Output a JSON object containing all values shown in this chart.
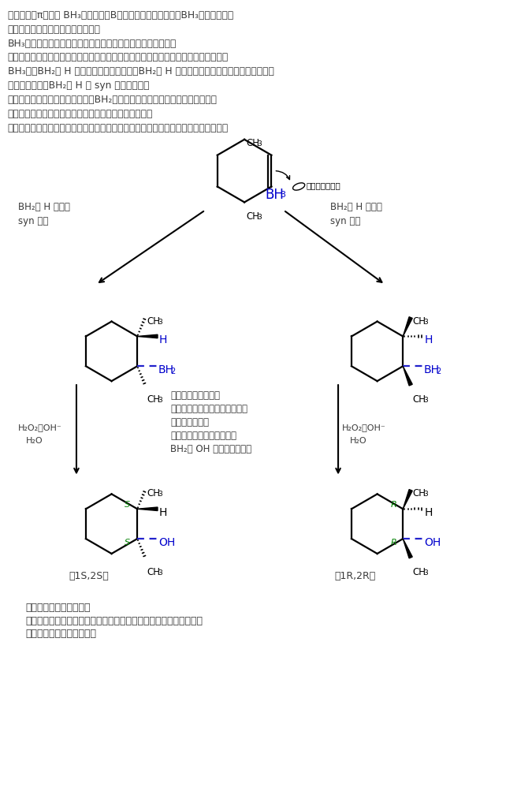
{
  "bg_color": "#ffffff",
  "text_color": "#3a3a3a",
  "blue_color": "#0000cc",
  "green_color": "#008000",
  "black_color": "#000000",
  "line1": "アルケンのπ電子が BH₃のホウ素（B）の空軌道に供与され、BH₃が付加する。",
  "line2": "この時、アルケンの平面に対して、",
  "line3": "BH₃が上に付加するのと下に付加するのは平等に起こり得る。",
  "line4": "このことから、アルケンの構造によっては、立体異性体が等量で生じることになる。",
  "line5": "BH₃は、BH₂と H に分かれて付加するが、BH₂と H がゆるくつながった状態で付加する。",
  "line6": "このことから、BH₂と H の syn 付加となる。",
  "line7": "この時、立体障害を避けるため、BH₂は置換基の少ない方の炭素に付加する。",
  "line8": "このことから、主生成物は逆マルコフニコフ型となる。",
  "line9": "（本問のアルケンは、２つの炭素で置換基の数は同じなので、考慮しなくてよい。）",
  "label_left1": "BH₂と H が上に",
  "label_left2": "syn 付加",
  "label_right1": "BH₂と H が下に",
  "label_right2": "syn 付加",
  "mid_text1": "ヒドロホウ素化後、",
  "mid_text2": "アルカリ性の過酸化水素水溶液",
  "mid_text3": "で処理すると、",
  "mid_text4": "酸化と加水分解が起こり、",
  "mid_text5": "BH₂が OH に置換される。",
  "reagent_left1": "H₂O₂、OH⁻",
  "reagent_left2": "H₂O",
  "reagent_right1": "H₂O₂、OH⁻",
  "reagent_right2": "H₂O",
  "label_1S2S": "（1S,2S）",
  "label_1R2R": "（1R,2R）",
  "footer1": "本問のアルケンからは、",
  "footer2": "互いにエナンチオマーの関係にあるものが等量ずつ生成するので、",
  "footer3": "生成物はラセミ体となる。",
  "boron_label": "ホウ素の空軌道"
}
